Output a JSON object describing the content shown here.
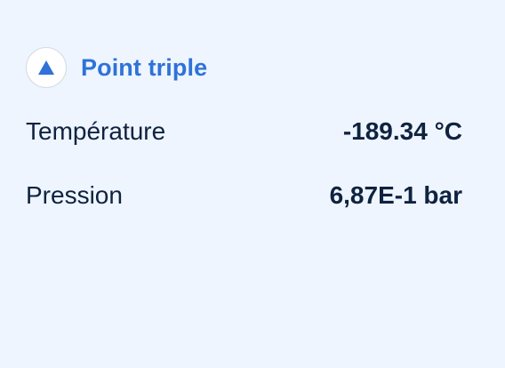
{
  "panel": {
    "title": "Point triple",
    "icon": "triangle-up-icon",
    "accent_color": "#2f72d9",
    "background_color": "#eef5fe"
  },
  "rows": [
    {
      "label": "Température",
      "value": "-189.34 °C"
    },
    {
      "label": "Pression",
      "value": "6,87E-1 bar"
    }
  ]
}
